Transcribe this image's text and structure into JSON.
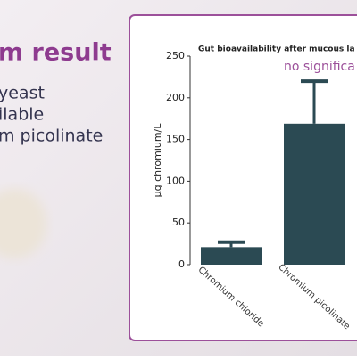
{
  "slide": {
    "heading": "m result",
    "lines": [
      "yeast",
      "ilable",
      "m picolinate"
    ]
  },
  "chart_data": {
    "type": "bar",
    "title": "Gut bioavailability after mucous la",
    "annotation": "no significa",
    "ylabel": "µg chromium/L",
    "categories": [
      "Chromium chloride",
      "Chromium picolinate"
    ],
    "values": [
      21,
      169
    ],
    "errors": [
      6,
      51
    ],
    "color": "#2b4a53",
    "ylim": [
      0,
      250
    ],
    "yticks": [
      0,
      50,
      100,
      150,
      200,
      250
    ]
  }
}
